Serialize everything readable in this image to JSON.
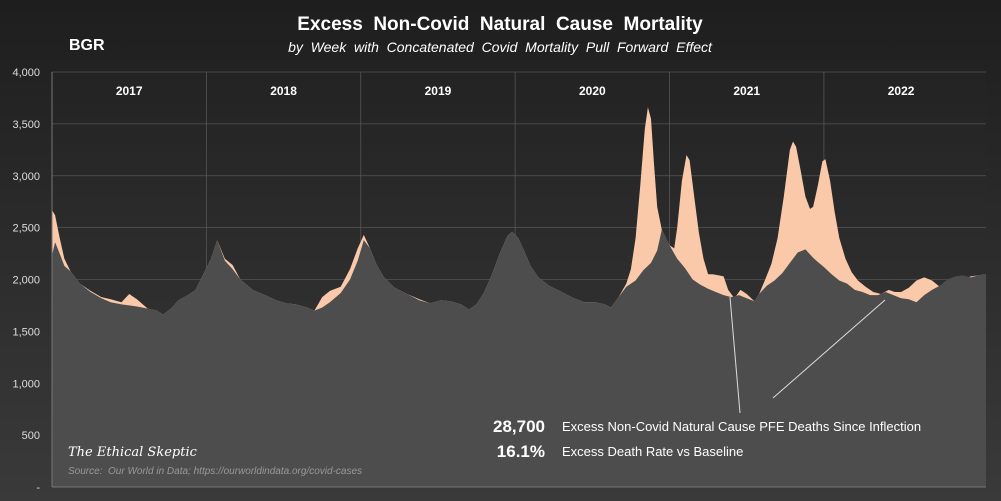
{
  "title": "Excess  Non-Covid  Natural  Cause  Mortality",
  "subtitle": "by  Week  with  Concatenated  Covid  Mortality  Pull  Forward  Effect",
  "country": "BGR",
  "watermark": "The Ethical Skeptic",
  "source": "Source:  Our World in Data; https://ourworldindata.org/covid-cases",
  "callouts": [
    {
      "value": "28,700",
      "label": "Excess Non-Covid Natural Cause PFE Deaths Since Inflection"
    },
    {
      "value": "16.1%",
      "label": "Excess Death Rate vs Baseline"
    }
  ],
  "colors": {
    "background_top": "#1e1e1e",
    "background_bottom": "#3a3a3a",
    "baseline_area": "#4d4d4d",
    "excess_area": "#f9c9a9",
    "text": "#ffffff",
    "axis_text": "#dddddd"
  },
  "chart_data": {
    "type": "area",
    "xlabel": "",
    "ylabel": "",
    "ylim": [
      0,
      4000
    ],
    "y_ticks": [
      {
        "value": 0,
        "label": "-"
      },
      {
        "value": 500,
        "label": "500"
      },
      {
        "value": 1000,
        "label": "1,000"
      },
      {
        "value": 1500,
        "label": "1,500"
      },
      {
        "value": 2000,
        "label": "2,000"
      },
      {
        "value": 2500,
        "label": "2,500"
      },
      {
        "value": 3000,
        "label": "3,000"
      },
      {
        "value": 3500,
        "label": "3,500"
      },
      {
        "value": 4000,
        "label": "4,000"
      }
    ],
    "grid": true,
    "x_range": [
      2017,
      2023.05
    ],
    "years": [
      {
        "label": "2017",
        "start": 2017
      },
      {
        "label": "2018",
        "start": 2018
      },
      {
        "label": "2019",
        "start": 2019
      },
      {
        "label": "2020",
        "start": 2020
      },
      {
        "label": "2021",
        "start": 2021
      },
      {
        "label": "2022",
        "start": 2022
      }
    ],
    "series": [
      {
        "key": "baseline",
        "points": [
          [
            2017.0,
            2230
          ],
          [
            2017.02,
            2360
          ],
          [
            2017.05,
            2250
          ],
          [
            2017.08,
            2130
          ],
          [
            2017.12,
            2080
          ],
          [
            2017.18,
            1960
          ],
          [
            2017.25,
            1880
          ],
          [
            2017.32,
            1820
          ],
          [
            2017.38,
            1780
          ],
          [
            2017.45,
            1760
          ],
          [
            2017.5,
            1750
          ],
          [
            2017.55,
            1740
          ],
          [
            2017.62,
            1720
          ],
          [
            2017.68,
            1700
          ],
          [
            2017.72,
            1660
          ],
          [
            2017.77,
            1720
          ],
          [
            2017.82,
            1800
          ],
          [
            2017.88,
            1850
          ],
          [
            2017.93,
            1900
          ],
          [
            2017.98,
            2050
          ],
          [
            2018.03,
            2200
          ],
          [
            2018.07,
            2380
          ],
          [
            2018.12,
            2180
          ],
          [
            2018.17,
            2100
          ],
          [
            2018.22,
            2000
          ],
          [
            2018.3,
            1900
          ],
          [
            2018.38,
            1850
          ],
          [
            2018.45,
            1800
          ],
          [
            2018.52,
            1770
          ],
          [
            2018.58,
            1760
          ],
          [
            2018.65,
            1730
          ],
          [
            2018.7,
            1700
          ],
          [
            2018.75,
            1730
          ],
          [
            2018.8,
            1780
          ],
          [
            2018.87,
            1870
          ],
          [
            2018.93,
            2000
          ],
          [
            2018.98,
            2180
          ],
          [
            2019.02,
            2380
          ],
          [
            2019.06,
            2300
          ],
          [
            2019.1,
            2150
          ],
          [
            2019.15,
            2020
          ],
          [
            2019.22,
            1920
          ],
          [
            2019.3,
            1860
          ],
          [
            2019.38,
            1800
          ],
          [
            2019.45,
            1770
          ],
          [
            2019.52,
            1800
          ],
          [
            2019.58,
            1790
          ],
          [
            2019.65,
            1760
          ],
          [
            2019.7,
            1710
          ],
          [
            2019.75,
            1760
          ],
          [
            2019.8,
            1880
          ],
          [
            2019.85,
            2050
          ],
          [
            2019.9,
            2250
          ],
          [
            2019.95,
            2420
          ],
          [
            2019.98,
            2460
          ],
          [
            2020.02,
            2400
          ],
          [
            2020.06,
            2270
          ],
          [
            2020.1,
            2130
          ],
          [
            2020.15,
            2020
          ],
          [
            2020.22,
            1940
          ],
          [
            2020.3,
            1880
          ],
          [
            2020.38,
            1820
          ],
          [
            2020.45,
            1780
          ],
          [
            2020.52,
            1780
          ],
          [
            2020.58,
            1760
          ],
          [
            2020.62,
            1730
          ],
          [
            2020.67,
            1830
          ],
          [
            2020.72,
            1930
          ],
          [
            2020.78,
            1990
          ],
          [
            2020.83,
            2090
          ],
          [
            2020.88,
            2160
          ],
          [
            2020.92,
            2280
          ],
          [
            2020.95,
            2480
          ],
          [
            2021.0,
            2330
          ],
          [
            2021.05,
            2200
          ],
          [
            2021.1,
            2110
          ],
          [
            2021.15,
            2000
          ],
          [
            2021.2,
            1950
          ],
          [
            2021.25,
            1910
          ],
          [
            2021.3,
            1880
          ],
          [
            2021.35,
            1850
          ],
          [
            2021.4,
            1830
          ],
          [
            2021.45,
            1850
          ],
          [
            2021.5,
            1820
          ],
          [
            2021.55,
            1790
          ],
          [
            2021.58,
            1860
          ],
          [
            2021.63,
            1940
          ],
          [
            2021.68,
            1990
          ],
          [
            2021.73,
            2060
          ],
          [
            2021.78,
            2160
          ],
          [
            2021.83,
            2260
          ],
          [
            2021.88,
            2290
          ],
          [
            2021.93,
            2210
          ],
          [
            2021.96,
            2170
          ],
          [
            2022.0,
            2120
          ],
          [
            2022.05,
            2050
          ],
          [
            2022.1,
            1990
          ],
          [
            2022.15,
            1960
          ],
          [
            2022.2,
            1900
          ],
          [
            2022.25,
            1880
          ],
          [
            2022.3,
            1850
          ],
          [
            2022.35,
            1850
          ],
          [
            2022.4,
            1880
          ],
          [
            2022.45,
            1850
          ],
          [
            2022.5,
            1820
          ],
          [
            2022.55,
            1810
          ],
          [
            2022.6,
            1780
          ],
          [
            2022.65,
            1850
          ],
          [
            2022.7,
            1900
          ],
          [
            2022.75,
            1940
          ],
          [
            2022.8,
            2000
          ],
          [
            2022.85,
            2030
          ],
          [
            2022.9,
            2040
          ],
          [
            2022.95,
            2020
          ],
          [
            2023.0,
            2040
          ],
          [
            2023.05,
            2050
          ]
        ]
      },
      {
        "key": "observed",
        "points": [
          [
            2017.0,
            2670
          ],
          [
            2017.02,
            2620
          ],
          [
            2017.05,
            2400
          ],
          [
            2017.08,
            2200
          ],
          [
            2017.12,
            2080
          ],
          [
            2017.18,
            1960
          ],
          [
            2017.25,
            1890
          ],
          [
            2017.32,
            1830
          ],
          [
            2017.38,
            1810
          ],
          [
            2017.45,
            1780
          ],
          [
            2017.5,
            1860
          ],
          [
            2017.55,
            1810
          ],
          [
            2017.62,
            1720
          ],
          [
            2017.68,
            1700
          ],
          [
            2017.72,
            1660
          ],
          [
            2017.77,
            1720
          ],
          [
            2017.82,
            1800
          ],
          [
            2017.88,
            1850
          ],
          [
            2017.93,
            1900
          ],
          [
            2017.98,
            2050
          ],
          [
            2018.03,
            2200
          ],
          [
            2018.07,
            2380
          ],
          [
            2018.12,
            2200
          ],
          [
            2018.17,
            2140
          ],
          [
            2018.22,
            2000
          ],
          [
            2018.3,
            1900
          ],
          [
            2018.38,
            1850
          ],
          [
            2018.45,
            1800
          ],
          [
            2018.52,
            1770
          ],
          [
            2018.58,
            1760
          ],
          [
            2018.65,
            1730
          ],
          [
            2018.7,
            1700
          ],
          [
            2018.75,
            1830
          ],
          [
            2018.8,
            1890
          ],
          [
            2018.87,
            1930
          ],
          [
            2018.93,
            2100
          ],
          [
            2018.98,
            2300
          ],
          [
            2019.02,
            2430
          ],
          [
            2019.06,
            2300
          ],
          [
            2019.1,
            2150
          ],
          [
            2019.15,
            2020
          ],
          [
            2019.22,
            1920
          ],
          [
            2019.3,
            1860
          ],
          [
            2019.38,
            1810
          ],
          [
            2019.45,
            1770
          ],
          [
            2019.52,
            1800
          ],
          [
            2019.58,
            1790
          ],
          [
            2019.65,
            1760
          ],
          [
            2019.7,
            1710
          ],
          [
            2019.75,
            1760
          ],
          [
            2019.8,
            1880
          ],
          [
            2019.85,
            2050
          ],
          [
            2019.9,
            2250
          ],
          [
            2019.95,
            2420
          ],
          [
            2019.98,
            2460
          ],
          [
            2020.02,
            2400
          ],
          [
            2020.06,
            2270
          ],
          [
            2020.1,
            2130
          ],
          [
            2020.15,
            2020
          ],
          [
            2020.22,
            1940
          ],
          [
            2020.3,
            1880
          ],
          [
            2020.38,
            1820
          ],
          [
            2020.45,
            1780
          ],
          [
            2020.52,
            1780
          ],
          [
            2020.58,
            1760
          ],
          [
            2020.62,
            1730
          ],
          [
            2020.67,
            1830
          ],
          [
            2020.72,
            1960
          ],
          [
            2020.75,
            2100
          ],
          [
            2020.78,
            2400
          ],
          [
            2020.81,
            2900
          ],
          [
            2020.84,
            3450
          ],
          [
            2020.86,
            3660
          ],
          [
            2020.88,
            3550
          ],
          [
            2020.9,
            3100
          ],
          [
            2020.92,
            2700
          ],
          [
            2020.95,
            2480
          ],
          [
            2021.0,
            2330
          ],
          [
            2021.03,
            2300
          ],
          [
            2021.05,
            2500
          ],
          [
            2021.08,
            2950
          ],
          [
            2021.11,
            3200
          ],
          [
            2021.13,
            3150
          ],
          [
            2021.16,
            2800
          ],
          [
            2021.19,
            2450
          ],
          [
            2021.22,
            2200
          ],
          [
            2021.25,
            2050
          ],
          [
            2021.28,
            2050
          ],
          [
            2021.32,
            2040
          ],
          [
            2021.35,
            2030
          ],
          [
            2021.38,
            1900
          ],
          [
            2021.42,
            1820
          ],
          [
            2021.46,
            1900
          ],
          [
            2021.5,
            1860
          ],
          [
            2021.55,
            1790
          ],
          [
            2021.58,
            1860
          ],
          [
            2021.62,
            2000
          ],
          [
            2021.66,
            2150
          ],
          [
            2021.7,
            2400
          ],
          [
            2021.74,
            2800
          ],
          [
            2021.78,
            3250
          ],
          [
            2021.8,
            3330
          ],
          [
            2021.82,
            3280
          ],
          [
            2021.85,
            3050
          ],
          [
            2021.88,
            2800
          ],
          [
            2021.91,
            2680
          ],
          [
            2021.93,
            2700
          ],
          [
            2021.96,
            2900
          ],
          [
            2021.99,
            3140
          ],
          [
            2022.01,
            3160
          ],
          [
            2022.04,
            2950
          ],
          [
            2022.07,
            2650
          ],
          [
            2022.1,
            2400
          ],
          [
            2022.14,
            2200
          ],
          [
            2022.18,
            2070
          ],
          [
            2022.22,
            1990
          ],
          [
            2022.27,
            1930
          ],
          [
            2022.32,
            1880
          ],
          [
            2022.37,
            1860
          ],
          [
            2022.42,
            1900
          ],
          [
            2022.46,
            1880
          ],
          [
            2022.5,
            1880
          ],
          [
            2022.55,
            1920
          ],
          [
            2022.6,
            1990
          ],
          [
            2022.65,
            2020
          ],
          [
            2022.7,
            1990
          ],
          [
            2022.75,
            1930
          ],
          [
            2022.8,
            1900
          ],
          [
            2022.85,
            1920
          ],
          [
            2022.9,
            1990
          ],
          [
            2022.95,
            2030
          ],
          [
            2023.0,
            2040
          ],
          [
            2023.05,
            2050
          ]
        ]
      }
    ]
  }
}
